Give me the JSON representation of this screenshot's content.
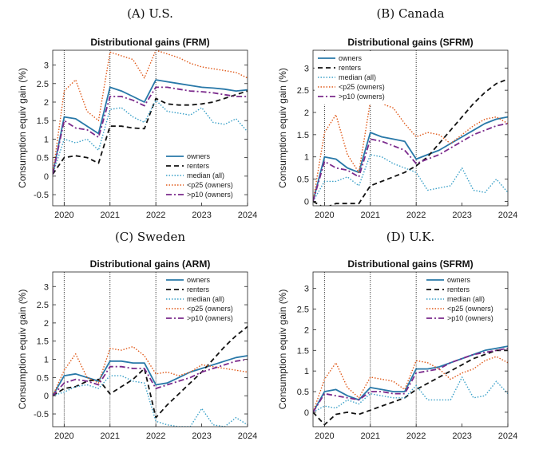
{
  "figure": {
    "ylabel": "Consumption equiv gain (%)",
    "legend_entries": [
      "owners",
      "renters",
      "median (all)",
      "<p25 (owners)",
      ">p10 (owners)"
    ],
    "series_colors": {
      "owners": "#2878a8",
      "renters": "#111111",
      "median (all)": "#3aa0c8",
      "<p25 (owners)": "#e05a1a",
      ">p10 (owners)": "#7b2a8c"
    }
  },
  "chart_data": [
    {
      "type": "line",
      "panel_label": "(A) U.S.",
      "title": "Distributional gains (FRM)",
      "ylabel": "Consumption equiv gain (%)",
      "x_ticks": [
        "2020",
        "2021",
        "2022",
        "2023",
        "2024"
      ],
      "x_tick_positions": [
        1,
        5,
        9,
        13,
        17
      ],
      "xlim": [
        0,
        17
      ],
      "ylim": [
        -0.8,
        3.4
      ],
      "y_ticks": [
        -0.5,
        0,
        0.5,
        1,
        1.5,
        2,
        2.5,
        3
      ],
      "vlines": [
        1,
        5,
        9
      ],
      "legend": "bottom-right",
      "x": [
        0,
        1,
        2,
        3,
        4,
        5,
        6,
        7,
        8,
        9,
        10,
        11,
        12,
        13,
        14,
        15,
        16,
        17
      ],
      "series": [
        {
          "name": "owners",
          "values": [
            0.05,
            1.6,
            1.55,
            1.35,
            1.15,
            2.4,
            2.3,
            2.15,
            2.0,
            2.6,
            2.55,
            2.5,
            2.45,
            2.4,
            2.38,
            2.35,
            2.3,
            2.33
          ]
        },
        {
          "name": "renters",
          "values": [
            0.05,
            0.5,
            0.55,
            0.5,
            0.35,
            1.35,
            1.35,
            1.3,
            1.28,
            2.1,
            1.95,
            1.92,
            1.92,
            1.95,
            2.0,
            2.1,
            2.2,
            2.3
          ]
        },
        {
          "name": "median (all)",
          "values": [
            0.05,
            1.0,
            0.9,
            1.0,
            0.7,
            1.8,
            1.85,
            1.6,
            1.45,
            2.05,
            1.75,
            1.7,
            1.65,
            1.85,
            1.45,
            1.4,
            1.55,
            1.2
          ]
        },
        {
          "name": "<p25 (owners)",
          "values": [
            0.05,
            2.3,
            2.6,
            1.75,
            1.5,
            3.35,
            3.25,
            3.15,
            2.65,
            3.4,
            3.3,
            3.2,
            3.05,
            2.95,
            2.9,
            2.85,
            2.8,
            2.65
          ]
        },
        {
          "name": ">p10 (owners)",
          "values": [
            0.05,
            1.5,
            1.3,
            1.25,
            1.05,
            2.15,
            2.15,
            2.05,
            1.9,
            2.4,
            2.4,
            2.35,
            2.3,
            2.28,
            2.25,
            2.2,
            2.15,
            2.15
          ]
        }
      ]
    },
    {
      "type": "line",
      "panel_label": "(B) Canada",
      "title": "Distributional gains (SFRM)",
      "ylabel": "Consumption equiv gain (%)",
      "x_ticks": [
        "2020",
        "2021",
        "2022",
        "2023",
        "2024"
      ],
      "x_tick_positions": [
        1,
        5,
        9,
        13,
        17
      ],
      "xlim": [
        0,
        17
      ],
      "ylim": [
        -0.1,
        3.4
      ],
      "y_ticks": [
        0,
        0.5,
        1,
        1.5,
        2,
        2.5,
        3
      ],
      "vlines": [
        1,
        5,
        9
      ],
      "legend": "top-left",
      "x": [
        0,
        1,
        2,
        3,
        4,
        5,
        6,
        7,
        8,
        9,
        10,
        11,
        12,
        13,
        14,
        15,
        16,
        17
      ],
      "series": [
        {
          "name": "owners",
          "values": [
            0.0,
            1.0,
            0.95,
            0.75,
            0.65,
            1.55,
            1.45,
            1.4,
            1.35,
            0.95,
            1.05,
            1.15,
            1.3,
            1.45,
            1.6,
            1.75,
            1.85,
            1.9
          ]
        },
        {
          "name": "renters",
          "values": [
            0.0,
            -0.15,
            -0.05,
            -0.05,
            -0.05,
            0.35,
            0.45,
            0.55,
            0.65,
            0.8,
            1.0,
            1.3,
            1.6,
            1.9,
            2.2,
            2.45,
            2.65,
            2.75
          ]
        },
        {
          "name": "median (all)",
          "values": [
            0.0,
            0.45,
            0.45,
            0.55,
            0.35,
            1.05,
            1.0,
            0.85,
            0.75,
            0.65,
            0.25,
            0.3,
            0.35,
            0.75,
            0.25,
            0.2,
            0.5,
            0.2
          ]
        },
        {
          "name": "<p25 (owners)",
          "values": [
            0.0,
            1.55,
            1.95,
            1.05,
            0.65,
            2.25,
            2.2,
            2.1,
            1.75,
            1.45,
            1.55,
            1.5,
            1.3,
            1.5,
            1.7,
            1.85,
            1.9,
            1.75
          ]
        },
        {
          "name": ">p10 (owners)",
          "values": [
            0.0,
            0.9,
            0.75,
            0.7,
            0.55,
            1.4,
            1.35,
            1.25,
            1.15,
            0.85,
            0.95,
            1.05,
            1.2,
            1.35,
            1.5,
            1.6,
            1.7,
            1.75
          ]
        }
      ]
    },
    {
      "type": "line",
      "panel_label": "(C) Sweden",
      "title": "Distributional gains (ARM)",
      "ylabel": "Consumption equiv gain (%)",
      "x_ticks": [
        "2020",
        "2021",
        "2022",
        "2023",
        "2024"
      ],
      "x_tick_positions": [
        1,
        5,
        9,
        13,
        17
      ],
      "xlim": [
        0,
        17
      ],
      "ylim": [
        -0.85,
        3.4
      ],
      "y_ticks": [
        -0.5,
        0,
        0.5,
        1,
        1.5,
        2,
        2.5,
        3
      ],
      "vlines": [
        1,
        5,
        9
      ],
      "legend": "top-right",
      "x": [
        0,
        1,
        2,
        3,
        4,
        5,
        6,
        7,
        8,
        9,
        10,
        11,
        12,
        13,
        14,
        15,
        16,
        17
      ],
      "series": [
        {
          "name": "owners",
          "values": [
            0.0,
            0.55,
            0.6,
            0.5,
            0.4,
            0.95,
            0.95,
            0.9,
            0.9,
            0.3,
            0.35,
            0.5,
            0.65,
            0.75,
            0.85,
            0.95,
            1.05,
            1.1
          ]
        },
        {
          "name": "renters",
          "values": [
            0.0,
            0.2,
            0.25,
            0.4,
            0.45,
            0.05,
            0.25,
            0.45,
            0.75,
            -0.6,
            -0.25,
            0.05,
            0.35,
            0.65,
            1.0,
            1.35,
            1.65,
            1.9
          ]
        },
        {
          "name": "median (all)",
          "values": [
            0.0,
            0.1,
            0.25,
            0.3,
            0.2,
            0.55,
            0.55,
            0.4,
            0.35,
            -0.7,
            -0.8,
            -0.85,
            -0.85,
            -0.35,
            -0.8,
            -0.85,
            -0.6,
            -0.8
          ]
        },
        {
          "name": "<p25 (owners)",
          "values": [
            0.0,
            0.7,
            1.15,
            0.5,
            0.35,
            1.3,
            1.25,
            1.35,
            1.1,
            0.6,
            0.65,
            0.55,
            0.65,
            0.85,
            0.8,
            0.75,
            0.7,
            0.65
          ]
        },
        {
          "name": ">p10 (owners)",
          "values": [
            0.0,
            0.35,
            0.45,
            0.4,
            0.3,
            0.8,
            0.8,
            0.75,
            0.75,
            0.2,
            0.3,
            0.4,
            0.5,
            0.65,
            0.75,
            0.85,
            0.95,
            1.0
          ]
        }
      ]
    },
    {
      "type": "line",
      "panel_label": "(D) U.K.",
      "title": "Distributional gains (SFRM)",
      "ylabel": "Consumption equiv gain (%)",
      "x_ticks": [
        "2020",
        "2021",
        "2022",
        "2023",
        "2024"
      ],
      "x_tick_positions": [
        1,
        5,
        9,
        13,
        17
      ],
      "xlim": [
        0,
        17
      ],
      "ylim": [
        -0.35,
        3.4
      ],
      "y_ticks": [
        0,
        0.5,
        1,
        1.5,
        2,
        2.5,
        3
      ],
      "vlines": [
        1,
        5,
        9
      ],
      "legend": "top-right",
      "x": [
        0,
        1,
        2,
        3,
        4,
        5,
        6,
        7,
        8,
        9,
        10,
        11,
        12,
        13,
        14,
        15,
        16,
        17
      ],
      "series": [
        {
          "name": "owners",
          "values": [
            0.0,
            0.5,
            0.55,
            0.4,
            0.3,
            0.6,
            0.55,
            0.5,
            0.5,
            1.05,
            1.05,
            1.1,
            1.2,
            1.3,
            1.4,
            1.5,
            1.55,
            1.6
          ]
        },
        {
          "name": "renters",
          "values": [
            0.0,
            -0.3,
            -0.05,
            0.0,
            -0.05,
            0.05,
            0.15,
            0.25,
            0.35,
            0.55,
            0.7,
            0.85,
            1.0,
            1.15,
            1.3,
            1.4,
            1.5,
            1.5
          ]
        },
        {
          "name": "median (all)",
          "values": [
            0.0,
            0.15,
            0.1,
            0.3,
            0.2,
            0.45,
            0.4,
            0.35,
            0.35,
            0.65,
            0.3,
            0.3,
            0.3,
            0.85,
            0.35,
            0.4,
            0.75,
            0.45
          ]
        },
        {
          "name": "<p25 (owners)",
          "values": [
            0.0,
            0.8,
            1.2,
            0.6,
            0.35,
            0.85,
            0.8,
            0.75,
            0.55,
            1.25,
            1.2,
            1.05,
            0.8,
            0.95,
            1.05,
            1.25,
            1.35,
            1.2
          ]
        },
        {
          "name": ">p10 (owners)",
          "values": [
            0.0,
            0.45,
            0.4,
            0.35,
            0.3,
            0.5,
            0.5,
            0.45,
            0.45,
            0.95,
            1.0,
            1.05,
            1.2,
            1.3,
            1.4,
            1.45,
            1.5,
            1.55
          ]
        }
      ]
    }
  ]
}
